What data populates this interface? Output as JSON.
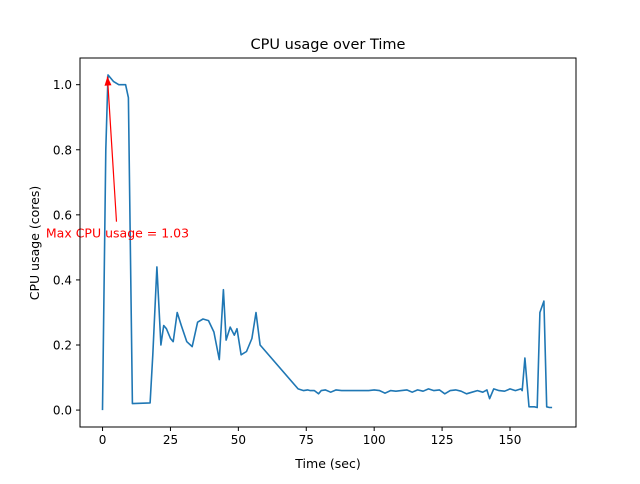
{
  "chart_data": {
    "type": "line",
    "title": "CPU usage over Time",
    "xlabel": "Time (sec)",
    "ylabel": "CPU usage (cores)",
    "xlim": [
      -8.3,
      174.3
    ],
    "ylim": [
      -0.052,
      1.082
    ],
    "xticks": [
      0,
      25,
      50,
      75,
      100,
      125,
      150
    ],
    "xtick_labels": [
      "0",
      "25",
      "50",
      "75",
      "100",
      "125",
      "150"
    ],
    "yticks": [
      0.0,
      0.2,
      0.4,
      0.6,
      0.8,
      1.0
    ],
    "ytick_labels": [
      "0.0",
      "0.2",
      "0.4",
      "0.6",
      "0.8",
      "1.0"
    ],
    "grid": false,
    "series": [
      {
        "name": "CPU usage",
        "color": "#1f77b4",
        "x": [
          0,
          1.2,
          2,
          4,
          6,
          7.5,
          8.5,
          9.5,
          11,
          17.5,
          18.5,
          20,
          21.5,
          22.5,
          23.5,
          25,
          26,
          27.5,
          29,
          31,
          33,
          35,
          37,
          39,
          41,
          43,
          44.5,
          45.5,
          47,
          48.5,
          49.5,
          51,
          53,
          55,
          56.5,
          58,
          72,
          74,
          75.5,
          76.5,
          78,
          79.5,
          80.5,
          82,
          84,
          86,
          88,
          90,
          92,
          94,
          96,
          98,
          100,
          102,
          104,
          106,
          108,
          110,
          112,
          114,
          116,
          118,
          120,
          122,
          124,
          126,
          128,
          130,
          132,
          134,
          136,
          138,
          140,
          141.5,
          142.5,
          144,
          146,
          148,
          150,
          152,
          154,
          154.5,
          155.5,
          157,
          159,
          160,
          161,
          162.5,
          163.5,
          164.5,
          165.5
        ],
        "values": [
          0.0,
          0.8,
          1.03,
          1.01,
          1.0,
          1.0,
          1.0,
          0.96,
          0.02,
          0.022,
          0.17,
          0.44,
          0.2,
          0.26,
          0.25,
          0.22,
          0.21,
          0.3,
          0.26,
          0.21,
          0.195,
          0.27,
          0.28,
          0.275,
          0.24,
          0.155,
          0.37,
          0.215,
          0.255,
          0.23,
          0.25,
          0.17,
          0.18,
          0.22,
          0.3,
          0.2,
          0.065,
          0.06,
          0.062,
          0.06,
          0.06,
          0.05,
          0.06,
          0.062,
          0.055,
          0.062,
          0.06,
          0.06,
          0.06,
          0.06,
          0.06,
          0.06,
          0.062,
          0.06,
          0.052,
          0.06,
          0.058,
          0.06,
          0.062,
          0.055,
          0.062,
          0.058,
          0.065,
          0.06,
          0.062,
          0.05,
          0.06,
          0.062,
          0.058,
          0.05,
          0.055,
          0.06,
          0.055,
          0.062,
          0.035,
          0.065,
          0.06,
          0.058,
          0.065,
          0.06,
          0.065,
          0.06,
          0.16,
          0.01,
          0.01,
          0.008,
          0.3,
          0.335,
          0.01,
          0.008,
          0.008
        ]
      }
    ],
    "annotations": [
      {
        "text": "Max CPU usage = 1.03",
        "text_xy": [
          5.5,
          0.585
        ],
        "arrow_to": [
          1.8,
          1.025
        ],
        "color": "#ff0000"
      }
    ]
  }
}
